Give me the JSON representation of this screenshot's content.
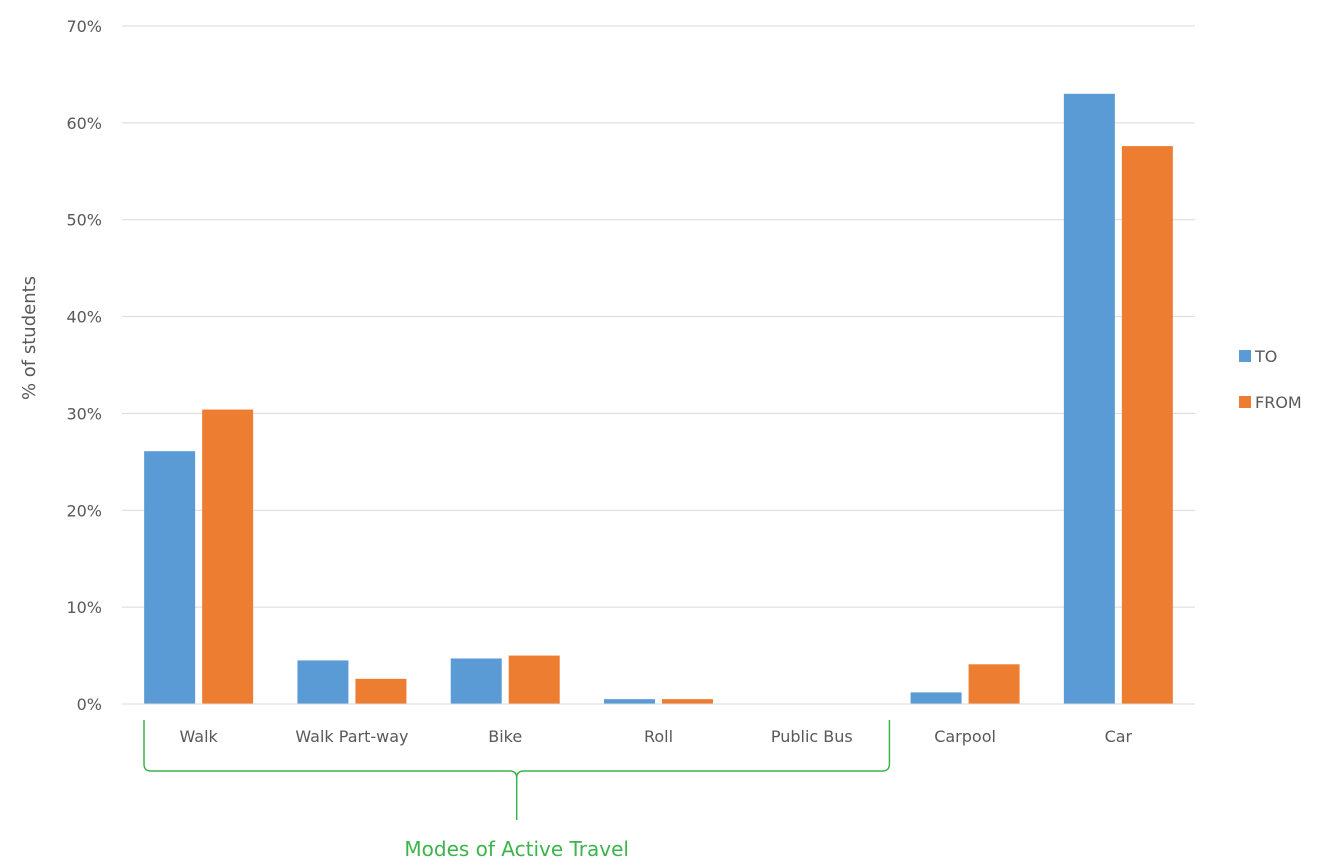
{
  "chart_data": {
    "type": "bar",
    "categories": [
      "Walk",
      "Walk Part-way",
      "Bike",
      "Roll",
      "Public Bus",
      "Carpool",
      "Car"
    ],
    "series": [
      {
        "name": "TO",
        "color": "#5B9BD5",
        "values": [
          26.1,
          4.5,
          4.7,
          0.5,
          0.0,
          1.2,
          63.0
        ]
      },
      {
        "name": "FROM",
        "color": "#ED7D31",
        "values": [
          30.4,
          2.6,
          5.0,
          0.5,
          0.0,
          4.1,
          57.6
        ]
      }
    ],
    "ylabel": "% of students",
    "ylim": [
      0,
      70
    ],
    "yticks": [
      "0%",
      "10%",
      "20%",
      "30%",
      "40%",
      "50%",
      "60%",
      "70%"
    ],
    "grid": true,
    "legend_position": "right",
    "annotation": {
      "text": "Modes of Active Travel",
      "color": "#3CB44B",
      "spans_categories": [
        "Walk",
        "Walk Part-way",
        "Bike",
        "Roll",
        "Public Bus"
      ]
    }
  }
}
